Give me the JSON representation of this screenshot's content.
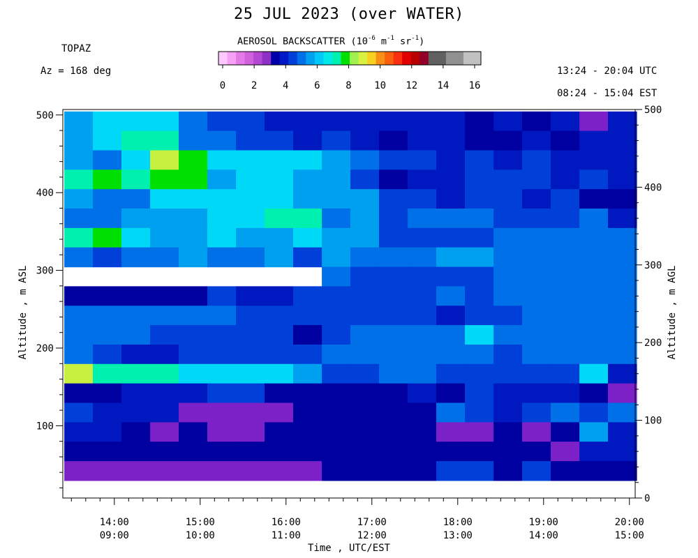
{
  "header": {
    "title": "25 JUL 2023 (over WATER)",
    "instrument": "TOPAZ",
    "azimuth": "Az = 168 deg",
    "utc_range": "13:24 - 20:04 UTC",
    "est_range": "08:24 - 15:04 EST"
  },
  "colorbar": {
    "title_main": "AEROSOL BACKSCATTER (10",
    "title_exp1": "-6",
    "title_mid1": " m",
    "title_exp2": "-1",
    "title_mid2": " sr",
    "title_exp3": "-1",
    "title_end": ")",
    "ticks": [
      "0",
      "2",
      "4",
      "6",
      "8",
      "10",
      "12",
      "14",
      "16"
    ],
    "range": [
      0,
      16
    ],
    "colors": [
      "#ffc8ff",
      "#f5a0f5",
      "#e47ae8",
      "#d060dc",
      "#b448d2",
      "#8c30c6",
      "#0000a8",
      "#0018c8",
      "#0040d8",
      "#0070e8",
      "#00a0f0",
      "#00c8f8",
      "#00e8e8",
      "#00f0b0",
      "#00e000",
      "#a0f050",
      "#d8f040",
      "#f8d020",
      "#f89018",
      "#f86010",
      "#f83010",
      "#e00000",
      "#b80000",
      "#900028",
      "#606060",
      "#606060",
      "#909090",
      "#909090",
      "#c0c0c0",
      "#c0c0c0"
    ]
  },
  "axes": {
    "ylabel_left": "Altitude , m ASL",
    "ylabel_right": "Altitude , m AGL",
    "xlabel": "Time , UTC/EST",
    "x_ticks_utc": [
      "14:00",
      "15:00",
      "16:00",
      "17:00",
      "18:00",
      "19:00",
      "20:00"
    ],
    "x_ticks_est": [
      "09:00",
      "10:00",
      "11:00",
      "12:00",
      "13:00",
      "14:00",
      "15:00"
    ],
    "y_ticks_left": [
      "100",
      "200",
      "300",
      "400",
      "500"
    ],
    "y_ticks_right": [
      "0",
      "100",
      "200",
      "300",
      "400",
      "500"
    ]
  },
  "chart_data": {
    "type": "heatmap",
    "title": "25 JUL 2023 (over WATER)",
    "xlabel": "Time , UTC/EST",
    "ylabel": "Altitude , m ASL",
    "x_range_utc_hours": [
      13.4,
      20.067
    ],
    "y_range_m_asl": [
      7,
      507
    ],
    "colorbar_range": [
      0,
      16
    ],
    "palette": {
      "v": "#7c20c8",
      "n": "#0000a0",
      "d": "#0018c0",
      "b": "#0040d8",
      "m": "#0070e8",
      "s": "#00a0f0",
      "c": "#00d8f8",
      "t": "#00f0b0",
      "g": "#00e000",
      "y": "#c8f040",
      "w": "#ffffff"
    },
    "column_start_hours": [
      13.417,
      13.75,
      14.083,
      14.417,
      14.75,
      15.083,
      15.417,
      15.75,
      16.083,
      16.417,
      16.75,
      17.083,
      17.417,
      17.75,
      18.083,
      18.417,
      18.75,
      19.083,
      19.417,
      19.75
    ],
    "row_altitudes_m": [
      492,
      467,
      442,
      417,
      392,
      367,
      342,
      317,
      292,
      267,
      242,
      217,
      192,
      167,
      142,
      117,
      92,
      67,
      42,
      17
    ],
    "columns": [
      "scccmbbdddddddndndvd",
      "scttmmbbdbdnddnndndd",
      "smcygccccsmbbdbdbddd",
      "tgtggsccssbnddbbbdbd",
      "smmcccccsssbbdbbdbnn",
      "mmsssccttmsbmmmbbbmd",
      "tgcsscsscssbbbbmmmmm",
      "mbmmsmmsbsmmmssmmmmm",
      "wwwwwwwwwmbbbbbmmmmm",
      "nnnnnbddbbbbbmbmmmmm",
      "mmmmmmbbbbbbbdbbmmmm",
      "mmmbbbbbnbmmmmcmmmmm",
      "mbddbbbbbmmmmmmbmmmm",
      "ytttccccsbbmmbbbbbcd",
      "nndddbbnnnnndnbdddnv",
      "bdddvvvvnnnnnmbdbmbm",
      "ddnvnvvnnnnnnvvnvnsd",
      "nnnnnnnnnnnnnnnnnvdd",
      "vvvvvvvvvnnnnbbnbnnn",
      "wwwwwwwwwwwwwwwwwwww"
    ]
  }
}
